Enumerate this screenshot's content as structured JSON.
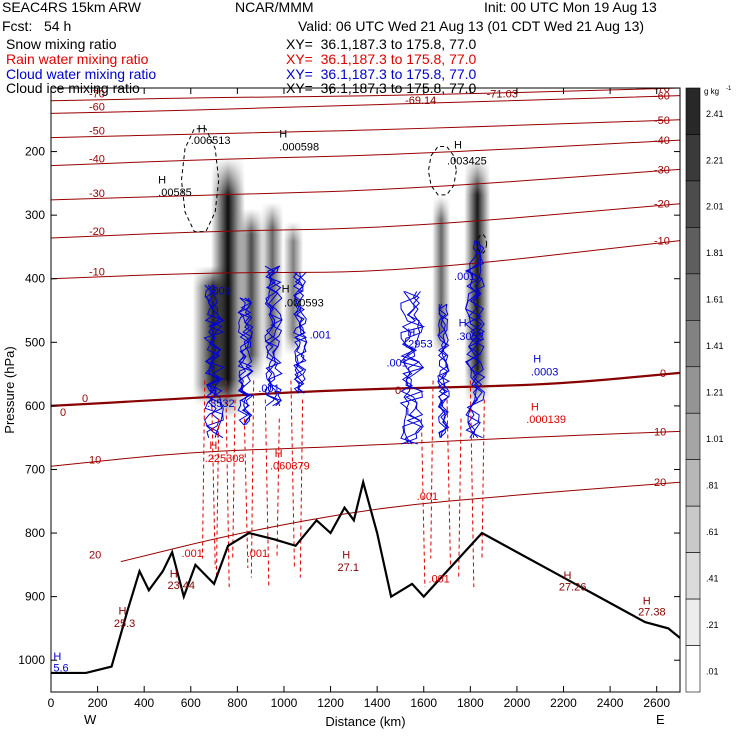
{
  "header": {
    "model": "SEAC4RS 15km ARW",
    "org": "NCAR/MMM",
    "init": "Init: 00 UTC Mon 19 Aug 13",
    "fcst": "Fcst:   54 h",
    "valid": "Valid: 06 UTC Wed 21 Aug 13 (01 CDT Wed 21 Aug 13)"
  },
  "fields": [
    {
      "label": "Snow mixing ratio",
      "xy": "XY=  36.1,187.3 to 175.8, 77.0",
      "color": "#000000"
    },
    {
      "label": "Rain water mixing ratio",
      "xy": "XY=  36.1,187.3 to 175.8, 77.0",
      "color": "#dd0000"
    },
    {
      "label": "Cloud water mixing ratio",
      "xy": "XY=  36.1,187.3 to 175.8, 77.0",
      "color": "#0000cc"
    },
    {
      "label": "Cloud ice mixing ratio",
      "xy": "XY=  36.1,187.3 to 175.8, 77.0",
      "color": "#000000"
    }
  ],
  "chart_data": {
    "type": "heatmap",
    "xlabel": "Distance (km)",
    "ylabel": "Pressure (hPa)",
    "xlim": [
      0,
      2700
    ],
    "ylim": [
      1050,
      100
    ],
    "x_ticks": [
      "0",
      "200",
      "400",
      "600",
      "800",
      "1000",
      "1200",
      "1400",
      "1600",
      "1800",
      "2000",
      "2200",
      "2400",
      "2600"
    ],
    "y_ticks": [
      "200",
      "300",
      "400",
      "500",
      "600",
      "700",
      "800",
      "900",
      "1000"
    ],
    "y_tick_values": [
      200,
      300,
      400,
      500,
      600,
      700,
      800,
      900,
      1000
    ],
    "x_end_labels": {
      "left": "W",
      "right": "E"
    },
    "colorbar": {
      "unit": "g kg",
      "unit_exp": "-1",
      "labels": [
        "2.41",
        "2.21",
        "2.01",
        "1.81",
        "1.61",
        "1.41",
        "1.21",
        "1.01",
        ".81",
        ".61",
        ".41",
        ".21",
        ".01"
      ]
    },
    "temperature_contours": [
      {
        "label": "-70",
        "p": [
          [
            0,
            120
          ],
          [
            700,
            115
          ],
          [
            1500,
            112
          ],
          [
            2700,
            100
          ]
        ]
      },
      {
        "label": "-60",
        "p": [
          [
            0,
            140
          ],
          [
            600,
            135
          ],
          [
            1200,
            128
          ],
          [
            1800,
            122
          ],
          [
            2700,
            112
          ]
        ]
      },
      {
        "label": "-50",
        "p": [
          [
            0,
            178
          ],
          [
            700,
            172
          ],
          [
            1500,
            165
          ],
          [
            2700,
            150
          ]
        ]
      },
      {
        "label": "-40",
        "p": [
          [
            0,
            222
          ],
          [
            700,
            212
          ],
          [
            1500,
            205
          ],
          [
            2700,
            182
          ]
        ]
      },
      {
        "label": "-30",
        "p": [
          [
            0,
            276
          ],
          [
            700,
            268
          ],
          [
            1500,
            260
          ],
          [
            2700,
            228
          ]
        ]
      },
      {
        "label": "-20",
        "p": [
          [
            0,
            336
          ],
          [
            700,
            325
          ],
          [
            1500,
            320
          ],
          [
            2700,
            282
          ]
        ]
      },
      {
        "label": "-10",
        "p": [
          [
            0,
            400
          ],
          [
            700,
            390
          ],
          [
            1500,
            390
          ],
          [
            2700,
            340
          ]
        ]
      },
      {
        "label": "10",
        "p": [
          [
            0,
            695
          ],
          [
            600,
            672
          ],
          [
            1200,
            665
          ],
          [
            2000,
            650
          ],
          [
            2700,
            640
          ]
        ]
      },
      {
        "label": "20",
        "p": [
          [
            300,
            845
          ],
          [
            800,
            800
          ],
          [
            1400,
            760
          ],
          [
            2000,
            740
          ],
          [
            2700,
            720
          ]
        ]
      }
    ],
    "freezing_level": {
      "label": "0",
      "p": [
        [
          0,
          600
        ],
        [
          500,
          590
        ],
        [
          1200,
          575
        ],
        [
          1800,
          570
        ],
        [
          2200,
          565
        ],
        [
          2700,
          548
        ]
      ]
    },
    "terrain": [
      [
        0,
        1020
      ],
      [
        150,
        1020
      ],
      [
        260,
        1010
      ],
      [
        330,
        920
      ],
      [
        380,
        860
      ],
      [
        420,
        890
      ],
      [
        480,
        860
      ],
      [
        520,
        830
      ],
      [
        570,
        900
      ],
      [
        620,
        850
      ],
      [
        700,
        880
      ],
      [
        760,
        820
      ],
      [
        850,
        800
      ],
      [
        960,
        810
      ],
      [
        1050,
        820
      ],
      [
        1140,
        780
      ],
      [
        1200,
        800
      ],
      [
        1260,
        760
      ],
      [
        1300,
        780
      ],
      [
        1340,
        720
      ],
      [
        1400,
        800
      ],
      [
        1460,
        900
      ],
      [
        1550,
        880
      ],
      [
        1600,
        900
      ],
      [
        1650,
        880
      ],
      [
        1750,
        840
      ],
      [
        1850,
        800
      ],
      [
        1950,
        820
      ],
      [
        2050,
        840
      ],
      [
        2150,
        860
      ],
      [
        2250,
        880
      ],
      [
        2350,
        900
      ],
      [
        2450,
        920
      ],
      [
        2550,
        940
      ],
      [
        2650,
        950
      ],
      [
        2700,
        965
      ]
    ],
    "snow_columns": [
      {
        "x": 760,
        "top": 210,
        "bottom": 620,
        "w": 34,
        "i": 0.95
      },
      {
        "x": 695,
        "top": 380,
        "bottom": 600,
        "w": 40,
        "i": 0.85
      },
      {
        "x": 860,
        "top": 290,
        "bottom": 560,
        "w": 26,
        "i": 0.7
      },
      {
        "x": 950,
        "top": 280,
        "bottom": 540,
        "w": 22,
        "i": 0.6
      },
      {
        "x": 1040,
        "top": 310,
        "bottom": 520,
        "w": 20,
        "i": 0.5
      },
      {
        "x": 1830,
        "top": 210,
        "bottom": 600,
        "w": 26,
        "i": 0.9
      },
      {
        "x": 1675,
        "top": 270,
        "bottom": 520,
        "w": 18,
        "i": 0.6
      }
    ],
    "annotations": [
      {
        "text": "-69.14",
        "x": 1520,
        "p": 125,
        "color": "#880000"
      },
      {
        "text": "-71.03",
        "x": 1870,
        "p": 115,
        "color": "#880000"
      },
      {
        "text": "H",
        "x": 630,
        "p": 170,
        "color": "#000000"
      },
      {
        "text": ".006513",
        "x": 600,
        "p": 188,
        "color": "#000000"
      },
      {
        "text": "H",
        "x": 980,
        "p": 178,
        "color": "#000000"
      },
      {
        "text": ".000598",
        "x": 980,
        "p": 198,
        "color": "#000000"
      },
      {
        "text": "H",
        "x": 460,
        "p": 250,
        "color": "#000000"
      },
      {
        "text": ".00585",
        "x": 460,
        "p": 270,
        "color": "#000000"
      },
      {
        "text": "H",
        "x": 1730,
        "p": 195,
        "color": "#000000"
      },
      {
        "text": ".003425",
        "x": 1700,
        "p": 220,
        "color": "#000000"
      },
      {
        "text": "H",
        "x": 990,
        "p": 422,
        "color": "#000000"
      },
      {
        "text": ".000593",
        "x": 1000,
        "p": 444,
        "color": "#000000"
      },
      {
        "text": ".001",
        "x": 680,
        "p": 425,
        "color": "#0000cc"
      },
      {
        "text": ".001",
        "x": 1730,
        "p": 402,
        "color": "#0000cc"
      },
      {
        "text": ".001",
        "x": 1110,
        "p": 494,
        "color": "#0000cc"
      },
      {
        "text": "H",
        "x": 1530,
        "p": 490,
        "color": "#0000cc"
      },
      {
        "text": ".2953",
        "x": 1520,
        "p": 508,
        "color": "#0000cc"
      },
      {
        "text": ".001",
        "x": 1440,
        "p": 538,
        "color": "#0000cc"
      },
      {
        "text": "H",
        "x": 1750,
        "p": 475,
        "color": "#0000cc"
      },
      {
        "text": ".3052",
        "x": 1740,
        "p": 496,
        "color": "#0000cc"
      },
      {
        "text": "H",
        "x": 2070,
        "p": 532,
        "color": "#0000cc"
      },
      {
        "text": ".0003",
        "x": 2060,
        "p": 552,
        "color": "#0000cc"
      },
      {
        "text": ".001",
        "x": 890,
        "p": 578,
        "color": "#0000cc"
      },
      {
        "text": "H",
        "x": 680,
        "p": 582,
        "color": "#0000cc"
      },
      {
        "text": ".3532",
        "x": 670,
        "p": 602,
        "color": "#0000cc"
      },
      {
        "text": "H",
        "x": 2060,
        "p": 607,
        "color": "#dd0000"
      },
      {
        "text": ".000139",
        "x": 2040,
        "p": 627,
        "color": "#dd0000"
      },
      {
        "text": "H",
        "x": 680,
        "p": 668,
        "color": "#dd0000"
      },
      {
        "text": ".225308",
        "x": 660,
        "p": 688,
        "color": "#dd0000"
      },
      {
        "text": "H",
        "x": 960,
        "p": 680,
        "color": "#dd0000"
      },
      {
        "text": ".060379",
        "x": 940,
        "p": 700,
        "color": "#dd0000"
      },
      {
        "text": ".001",
        "x": 1570,
        "p": 748,
        "color": "#dd0000"
      },
      {
        "text": ".001",
        "x": 560,
        "p": 838,
        "color": "#dd0000"
      },
      {
        "text": ".001",
        "x": 840,
        "p": 838,
        "color": "#dd0000"
      },
      {
        "text": ".001",
        "x": 1620,
        "p": 878,
        "color": "#dd0000"
      },
      {
        "text": "H",
        "x": 510,
        "p": 870,
        "color": "#880000"
      },
      {
        "text": "23.44",
        "x": 500,
        "p": 888,
        "color": "#880000"
      },
      {
        "text": "H",
        "x": 290,
        "p": 928,
        "color": "#880000"
      },
      {
        "text": "25.3",
        "x": 270,
        "p": 948,
        "color": "#880000"
      },
      {
        "text": "H",
        "x": 1250,
        "p": 840,
        "color": "#880000"
      },
      {
        "text": "27.1",
        "x": 1230,
        "p": 860,
        "color": "#880000"
      },
      {
        "text": "H",
        "x": 2200,
        "p": 872,
        "color": "#880000"
      },
      {
        "text": "27.26",
        "x": 2180,
        "p": 890,
        "color": "#880000"
      },
      {
        "text": "H",
        "x": 2540,
        "p": 912,
        "color": "#880000"
      },
      {
        "text": "27.38",
        "x": 2520,
        "p": 930,
        "color": "#880000"
      },
      {
        "text": "H",
        "x": 10,
        "p": 1000,
        "color": "#0000cc"
      },
      {
        "text": "5.6",
        "x": 10,
        "p": 1018,
        "color": "#0000cc"
      }
    ]
  }
}
